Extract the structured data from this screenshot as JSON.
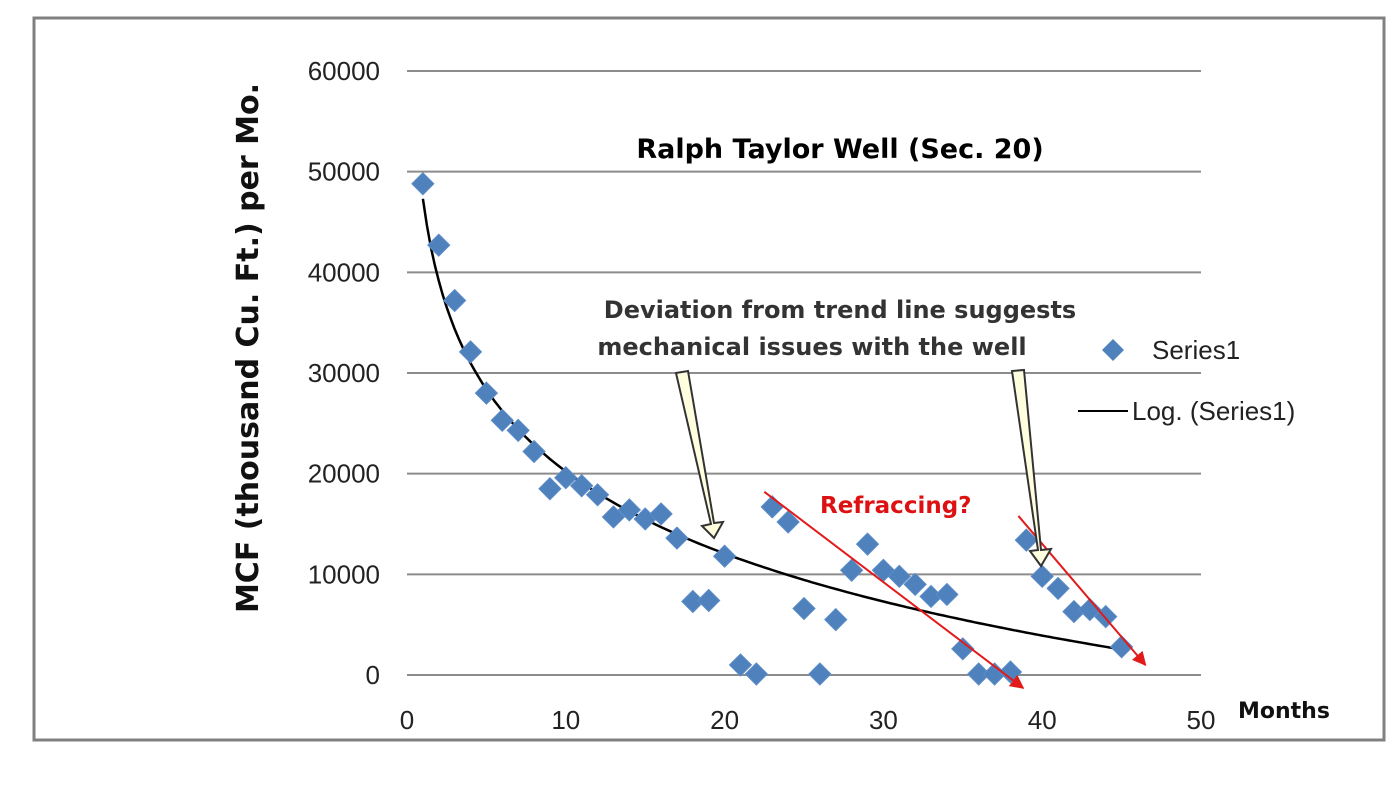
{
  "chart_data": {
    "type": "scatter",
    "title": "Ralph Taylor Well (Sec. 20)",
    "xlabel": "Months",
    "ylabel": "MCF (thousand Cu. Ft.) per Mo.",
    "xlim": [
      0,
      50
    ],
    "ylim": [
      0,
      60000
    ],
    "x_ticks": [
      "0",
      "10",
      "20",
      "30",
      "40",
      "50"
    ],
    "y_ticks": [
      "0",
      "10000",
      "20000",
      "30000",
      "40000",
      "50000",
      "60000"
    ],
    "grid": "horizontal",
    "legend_position": "right",
    "series": [
      {
        "name": "Series1",
        "marker": "diamond",
        "color": "#4f81bd",
        "x": [
          1,
          2,
          3,
          4,
          5,
          6,
          7,
          8,
          9,
          10,
          11,
          12,
          13,
          14,
          15,
          16,
          17,
          18,
          19,
          20,
          21,
          22,
          23,
          24,
          25,
          26,
          27,
          28,
          29,
          30,
          31,
          32,
          33,
          34,
          35,
          36,
          37,
          38,
          39,
          40,
          41,
          42,
          43,
          44,
          45
        ],
        "y": [
          48800,
          42700,
          37200,
          32100,
          28000,
          25300,
          24300,
          22200,
          18500,
          19600,
          18800,
          17900,
          15700,
          16400,
          15500,
          16000,
          13600,
          7300,
          7400,
          11800,
          1000,
          100,
          16700,
          15200,
          6600,
          100,
          5500,
          10400,
          13000,
          10400,
          9800,
          9000,
          7800,
          8000,
          2600,
          100,
          100,
          300,
          13400,
          9800,
          8600,
          6300,
          6500,
          5800,
          2800
        ]
      },
      {
        "name": "Log. (Series1)",
        "type": "line",
        "color": "#000000",
        "fit": "logarithmic",
        "fit_a": 47300,
        "fit_b": 11760,
        "x_range": [
          1,
          45
        ]
      }
    ],
    "annotations": {
      "deviation_line1": "Deviation from trend line suggests",
      "deviation_line2": "mechanical issues with the well",
      "refracturing": "Refraccing?"
    },
    "refrac_lines": [
      {
        "x": [
          22.5,
          38.8
        ],
        "y": [
          18200,
          -1300
        ]
      },
      {
        "x": [
          38.5,
          46.5
        ],
        "y": [
          15800,
          1000
        ]
      }
    ],
    "colors": {
      "title": "#1f1fdd",
      "refrac_text": "#dd1111",
      "refrac_arrows": "#e31a1a",
      "callout_arrow_fill": "#ffffe0",
      "gridline": "#8c8c8c",
      "border": "#808080"
    }
  }
}
